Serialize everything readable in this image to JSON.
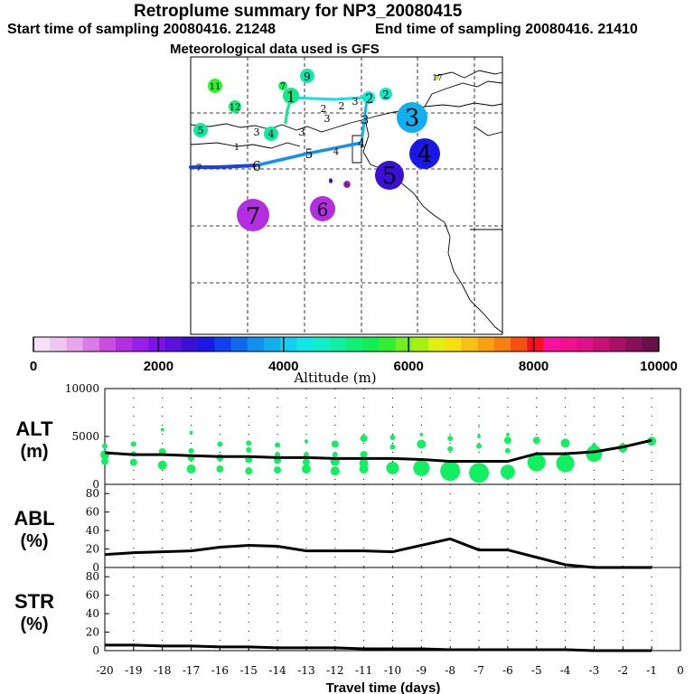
{
  "header": {
    "title": "Retroplume summary for NP3_20080415",
    "start_label": "Start time of sampling 20080416. 21248",
    "end_label": "End time of sampling 20080416. 21410",
    "met_label": "Meteorological data used is GFS"
  },
  "colorbar": {
    "label": "Altitude (m)",
    "ticks": [
      "0",
      "2000",
      "4000",
      "6000",
      "8000",
      "10000"
    ],
    "range": [
      0,
      10000
    ],
    "colors": [
      "#f7e0f7",
      "#efc6f0",
      "#e6a6ee",
      "#d97be8",
      "#c84de0",
      "#b22ee0",
      "#9b1de8",
      "#7d10ec",
      "#5b10e0",
      "#3a10d8",
      "#1a18e8",
      "#1040f0",
      "#1068f0",
      "#1090f0",
      "#10b0f0",
      "#10d0f0",
      "#10e8e8",
      "#10f0c8",
      "#10f0a0",
      "#10f078",
      "#10f050",
      "#30f030",
      "#70f020",
      "#a8f010",
      "#e0f010",
      "#f8e010",
      "#f8c010",
      "#f8a010",
      "#f88010",
      "#f85010",
      "#f81020",
      "#f810a0",
      "#f01090",
      "#e01088",
      "#c81078",
      "#a81068",
      "#881058",
      "#681048"
    ]
  },
  "map": {
    "trajectory_points": [
      {
        "day": "1",
        "size": "small",
        "color": "#10e88c"
      },
      {
        "day": "2",
        "size": "small",
        "color": "#10e8d0"
      },
      {
        "day": "3",
        "size": "large",
        "color": "#10b0f0"
      },
      {
        "day": "4",
        "size": "large",
        "color": "#1a18e8"
      },
      {
        "day": "5",
        "size": "large",
        "color": "#3a10d8"
      },
      {
        "day": "6",
        "size": "large",
        "color": "#b22ee0"
      },
      {
        "day": "7",
        "size": "large",
        "color": "#b22ee0"
      },
      {
        "day": "9",
        "size": "small",
        "color": "#10e8b0"
      },
      {
        "day": "11",
        "size": "small",
        "color": "#30f030"
      },
      {
        "day": "12",
        "size": "small",
        "color": "#10f078"
      },
      {
        "day": "17",
        "size": "small",
        "color": "#a8f010"
      }
    ],
    "plain_labels": [
      "1",
      "2",
      "2",
      "2",
      "3",
      "3",
      "3",
      "4",
      "4",
      "4",
      "5",
      "5",
      "6",
      "7"
    ]
  },
  "chart_data": [
    {
      "type": "scatter",
      "name": "ALT",
      "ylabel_line1": "ALT",
      "ylabel_line2": "(m)",
      "ylim": [
        0,
        10000
      ],
      "yticks": [
        "0",
        "5000",
        "10000"
      ],
      "x": [
        -20,
        -19,
        -18,
        -17,
        -16,
        -15,
        -14,
        -13,
        -12,
        -11,
        -10,
        -9,
        -8,
        -7,
        -6,
        -5,
        -4,
        -3,
        -2,
        -1
      ],
      "median_altitude": [
        3300,
        3100,
        3100,
        3000,
        2900,
        2900,
        2800,
        2800,
        2700,
        2700,
        2700,
        2600,
        2400,
        2400,
        2400,
        3200,
        3200,
        3400,
        3900,
        4600
      ],
      "points": [
        {
          "x": -20,
          "y": 4000,
          "r": 3
        },
        {
          "x": -20,
          "y": 3100,
          "r": 5
        },
        {
          "x": -20,
          "y": 2400,
          "r": 4
        },
        {
          "x": -19,
          "y": 4200,
          "r": 3
        },
        {
          "x": -19,
          "y": 3200,
          "r": 3
        },
        {
          "x": -19,
          "y": 2300,
          "r": 4
        },
        {
          "x": -18,
          "y": 5700,
          "r": 2
        },
        {
          "x": -18,
          "y": 3400,
          "r": 4
        },
        {
          "x": -18,
          "y": 2000,
          "r": 5
        },
        {
          "x": -17,
          "y": 5400,
          "r": 2
        },
        {
          "x": -17,
          "y": 3500,
          "r": 3
        },
        {
          "x": -17,
          "y": 2800,
          "r": 4
        },
        {
          "x": -17,
          "y": 1600,
          "r": 5
        },
        {
          "x": -16,
          "y": 4200,
          "r": 3
        },
        {
          "x": -16,
          "y": 2800,
          "r": 4
        },
        {
          "x": -16,
          "y": 1600,
          "r": 4
        },
        {
          "x": -15,
          "y": 4300,
          "r": 3
        },
        {
          "x": -15,
          "y": 3600,
          "r": 3
        },
        {
          "x": -15,
          "y": 2600,
          "r": 4
        },
        {
          "x": -15,
          "y": 1400,
          "r": 4
        },
        {
          "x": -14,
          "y": 4100,
          "r": 3
        },
        {
          "x": -14,
          "y": 3100,
          "r": 3
        },
        {
          "x": -14,
          "y": 2500,
          "r": 4
        },
        {
          "x": -14,
          "y": 1500,
          "r": 4
        },
        {
          "x": -13,
          "y": 4500,
          "r": 2
        },
        {
          "x": -13,
          "y": 3100,
          "r": 3
        },
        {
          "x": -13,
          "y": 2300,
          "r": 4
        },
        {
          "x": -13,
          "y": 1600,
          "r": 5
        },
        {
          "x": -12,
          "y": 4200,
          "r": 4
        },
        {
          "x": -12,
          "y": 3100,
          "r": 3
        },
        {
          "x": -12,
          "y": 2400,
          "r": 5
        },
        {
          "x": -12,
          "y": 1400,
          "r": 5
        },
        {
          "x": -11,
          "y": 4800,
          "r": 4
        },
        {
          "x": -11,
          "y": 3100,
          "r": 4
        },
        {
          "x": -11,
          "y": 2200,
          "r": 5
        },
        {
          "x": -11,
          "y": 1600,
          "r": 5
        },
        {
          "x": -10,
          "y": 4900,
          "r": 3
        },
        {
          "x": -10,
          "y": 3900,
          "r": 3
        },
        {
          "x": -10,
          "y": 1700,
          "r": 7
        },
        {
          "x": -9,
          "y": 5200,
          "r": 2
        },
        {
          "x": -9,
          "y": 4200,
          "r": 5
        },
        {
          "x": -9,
          "y": 1700,
          "r": 9
        },
        {
          "x": -8,
          "y": 4800,
          "r": 3
        },
        {
          "x": -8,
          "y": 3700,
          "r": 3
        },
        {
          "x": -8,
          "y": 1400,
          "r": 11
        },
        {
          "x": -7,
          "y": 6000,
          "r": 1
        },
        {
          "x": -7,
          "y": 5000,
          "r": 2
        },
        {
          "x": -7,
          "y": 4000,
          "r": 3
        },
        {
          "x": -7,
          "y": 1200,
          "r": 11
        },
        {
          "x": -6,
          "y": 5200,
          "r": 2
        },
        {
          "x": -6,
          "y": 4600,
          "r": 4
        },
        {
          "x": -6,
          "y": 3500,
          "r": 3
        },
        {
          "x": -6,
          "y": 1300,
          "r": 8
        },
        {
          "x": -5,
          "y": 4600,
          "r": 4
        },
        {
          "x": -5,
          "y": 2300,
          "r": 10
        },
        {
          "x": -4,
          "y": 4300,
          "r": 5
        },
        {
          "x": -4,
          "y": 2200,
          "r": 10
        },
        {
          "x": -3,
          "y": 4000,
          "r": 3
        },
        {
          "x": -3,
          "y": 3200,
          "r": 9
        },
        {
          "x": -2,
          "y": 3800,
          "r": 5
        },
        {
          "x": -1,
          "y": 4500,
          "r": 5
        }
      ],
      "point_color": "#10f060"
    },
    {
      "type": "line",
      "name": "ABL",
      "ylabel_line1": "ABL",
      "ylabel_line2": "(%)",
      "ylim": [
        0,
        90
      ],
      "yticks": [
        "0",
        "20",
        "40",
        "60",
        "80"
      ],
      "x": [
        -20,
        -19,
        -18,
        -17,
        -16,
        -15,
        -14,
        -13,
        -12,
        -11,
        -10,
        -9,
        -8,
        -7,
        -6,
        -5,
        -4,
        -3,
        -2,
        -1
      ],
      "values": [
        14,
        16,
        17,
        18,
        22,
        24,
        23,
        18,
        18,
        18,
        17,
        24,
        31,
        19,
        19,
        11,
        3,
        0,
        0,
        0
      ]
    },
    {
      "type": "line",
      "name": "STR",
      "ylabel_line1": "STR",
      "ylabel_line2": "(%)",
      "ylim": [
        0,
        90
      ],
      "yticks": [
        "0",
        "20",
        "40",
        "60",
        "80"
      ],
      "x": [
        -20,
        -19,
        -18,
        -17,
        -16,
        -15,
        -14,
        -13,
        -12,
        -11,
        -10,
        -9,
        -8,
        -7,
        -6,
        -5,
        -4,
        -3,
        -2,
        -1
      ],
      "values": [
        6,
        6,
        5,
        5,
        4,
        4,
        3,
        3,
        3,
        2,
        2,
        2,
        1,
        1,
        1,
        1,
        1,
        0,
        0,
        0
      ]
    }
  ],
  "xaxis": {
    "label": "Travel time (days)",
    "ticks": [
      "-20",
      "-19",
      "-18",
      "-17",
      "-16",
      "-15",
      "-14",
      "-13",
      "-12",
      "-11",
      "-10",
      "-9",
      "-8",
      "-7",
      "-6",
      "-5",
      "-4",
      "-3",
      "-2",
      "-1",
      "0"
    ],
    "xlim": [
      -20,
      0
    ]
  }
}
